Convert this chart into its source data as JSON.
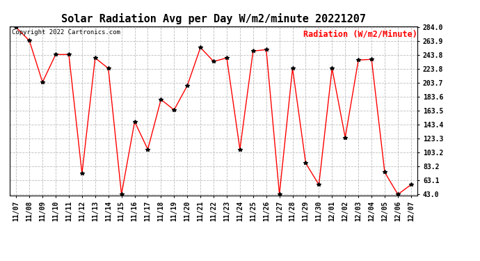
{
  "title": "Solar Radiation Avg per Day W/m2/minute 20221207",
  "copyright_text": "Copyright 2022 Cartronics.com",
  "legend_label": "Radiation (W/m2/Minute)",
  "dates": [
    "11/07",
    "11/08",
    "11/09",
    "11/10",
    "11/11",
    "11/12",
    "11/13",
    "11/14",
    "11/15",
    "11/16",
    "11/17",
    "11/18",
    "11/19",
    "11/20",
    "11/21",
    "11/22",
    "11/23",
    "11/24",
    "11/25",
    "11/26",
    "11/27",
    "11/28",
    "11/29",
    "11/30",
    "12/01",
    "12/02",
    "12/03",
    "12/04",
    "12/05",
    "12/06",
    "12/07"
  ],
  "values": [
    284.0,
    265.0,
    205.0,
    245.0,
    245.0,
    73.0,
    240.0,
    225.0,
    43.0,
    148.0,
    108.0,
    180.0,
    165.0,
    200.0,
    255.0,
    235.0,
    240.0,
    108.0,
    250.0,
    252.0,
    43.0,
    225.0,
    88.0,
    57.0,
    225.0,
    125.0,
    237.0,
    238.0,
    75.0,
    43.0,
    57.0
  ],
  "line_color": "red",
  "marker": "*",
  "marker_color": "black",
  "background_color": "#ffffff",
  "grid_color": "#bbbbbb",
  "ylim_min": 43.0,
  "ylim_max": 284.0,
  "yticks": [
    43.0,
    63.1,
    83.2,
    103.2,
    123.3,
    143.4,
    163.5,
    183.6,
    203.7,
    223.8,
    243.8,
    263.9,
    284.0
  ],
  "title_fontsize": 11,
  "copyright_fontsize": 6.5,
  "legend_fontsize": 8.5,
  "tick_fontsize": 7
}
